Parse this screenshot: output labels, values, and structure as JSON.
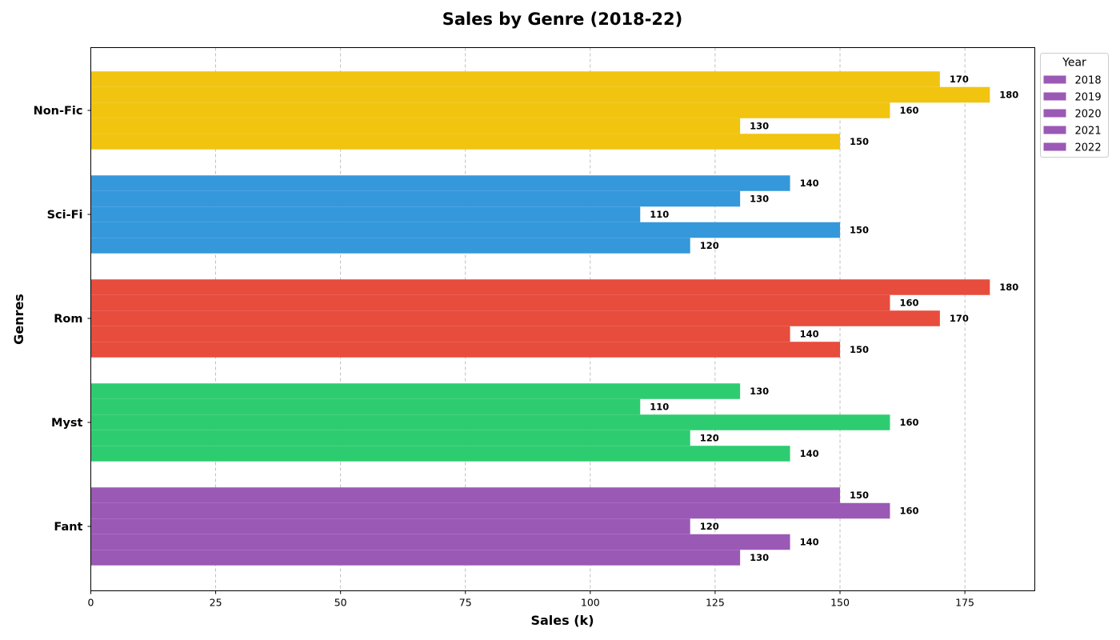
{
  "chart_data": {
    "type": "bar",
    "orientation": "horizontal",
    "title": "Sales by Genre (2018-22)",
    "xlabel": "Sales (k)",
    "ylabel": "Genres",
    "xlim": [
      0,
      189
    ],
    "xticks": [
      0,
      25,
      50,
      75,
      100,
      125,
      150,
      175
    ],
    "grid": "x-dashed",
    "categories": [
      "Fant",
      "Myst",
      "Rom",
      "Sci-Fi",
      "Non-Fic"
    ],
    "category_colors": [
      "#9b59b6",
      "#2ecc71",
      "#e74c3c",
      "#3498db",
      "#f1c40f"
    ],
    "legend": {
      "title": "Year",
      "placement": "outside top-right",
      "swatch_color": "#9b59b6"
    },
    "series": [
      {
        "name": "2018",
        "values": [
          150,
          130,
          180,
          140,
          170
        ]
      },
      {
        "name": "2019",
        "values": [
          160,
          110,
          160,
          130,
          180
        ]
      },
      {
        "name": "2020",
        "values": [
          120,
          160,
          170,
          110,
          160
        ]
      },
      {
        "name": "2021",
        "values": [
          140,
          120,
          140,
          150,
          130
        ]
      },
      {
        "name": "2022",
        "values": [
          130,
          140,
          150,
          120,
          150
        ]
      }
    ]
  }
}
